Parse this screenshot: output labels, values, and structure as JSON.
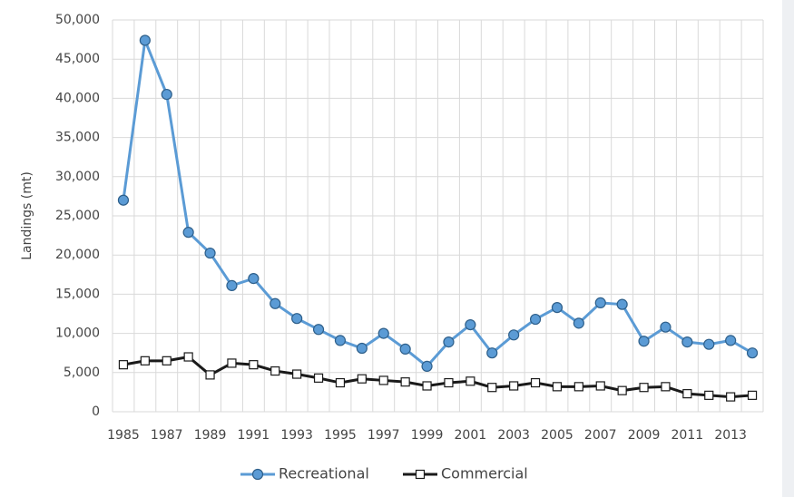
{
  "chart_data": {
    "type": "line",
    "y_label": "Landings (mt)",
    "categories": [
      "1985",
      null,
      "1987",
      null,
      "1989",
      null,
      "1991",
      null,
      "1993",
      null,
      "1995",
      null,
      "1997",
      null,
      "1999",
      null,
      "2001",
      null,
      "2003",
      null,
      "2005",
      null,
      "2007",
      null,
      "2009",
      null,
      "2011",
      null,
      "2013",
      null
    ],
    "series": [
      {
        "name": "Recreational",
        "color": "#5b9bd5",
        "values": [
          27000,
          47400,
          40500,
          22900,
          20250,
          16100,
          17000,
          13800,
          11900,
          10500,
          9100,
          8100,
          10000,
          8000,
          5800,
          8900,
          11100,
          7500,
          9800,
          11800,
          13300,
          11300,
          13900,
          13700,
          9000,
          10800,
          8900,
          8600,
          9100,
          7500
        ]
      },
      {
        "name": "Commercial",
        "color": "#1a1a1a",
        "values": [
          6000,
          6500,
          6500,
          7000,
          4700,
          6200,
          6000,
          5200,
          4800,
          4300,
          3700,
          4200,
          4000,
          3800,
          3300,
          3700,
          3900,
          3100,
          3300,
          3700,
          3200,
          3200,
          3300,
          2700,
          3100,
          3200,
          2300,
          2100,
          1900,
          2100
        ]
      }
    ],
    "ylim": [
      0,
      50000
    ],
    "yticks": [
      0,
      {
        "value": 5000,
        "label": "5,000"
      },
      {
        "value": 10000,
        "label": "10,000"
      },
      {
        "value": 15000,
        "label": "15,000"
      },
      {
        "value": 20000,
        "label": "20,000"
      },
      {
        "value": 25000,
        "label": "25,000"
      },
      {
        "value": 30000,
        "label": "30,000"
      },
      {
        "value": 35000,
        "label": "35,000"
      },
      {
        "value": 40000,
        "label": "40,000"
      },
      {
        "value": 45000,
        "label": "45,000"
      },
      {
        "value": 50000,
        "label": "50,000"
      }
    ],
    "grid": true,
    "legend": "bottom"
  }
}
